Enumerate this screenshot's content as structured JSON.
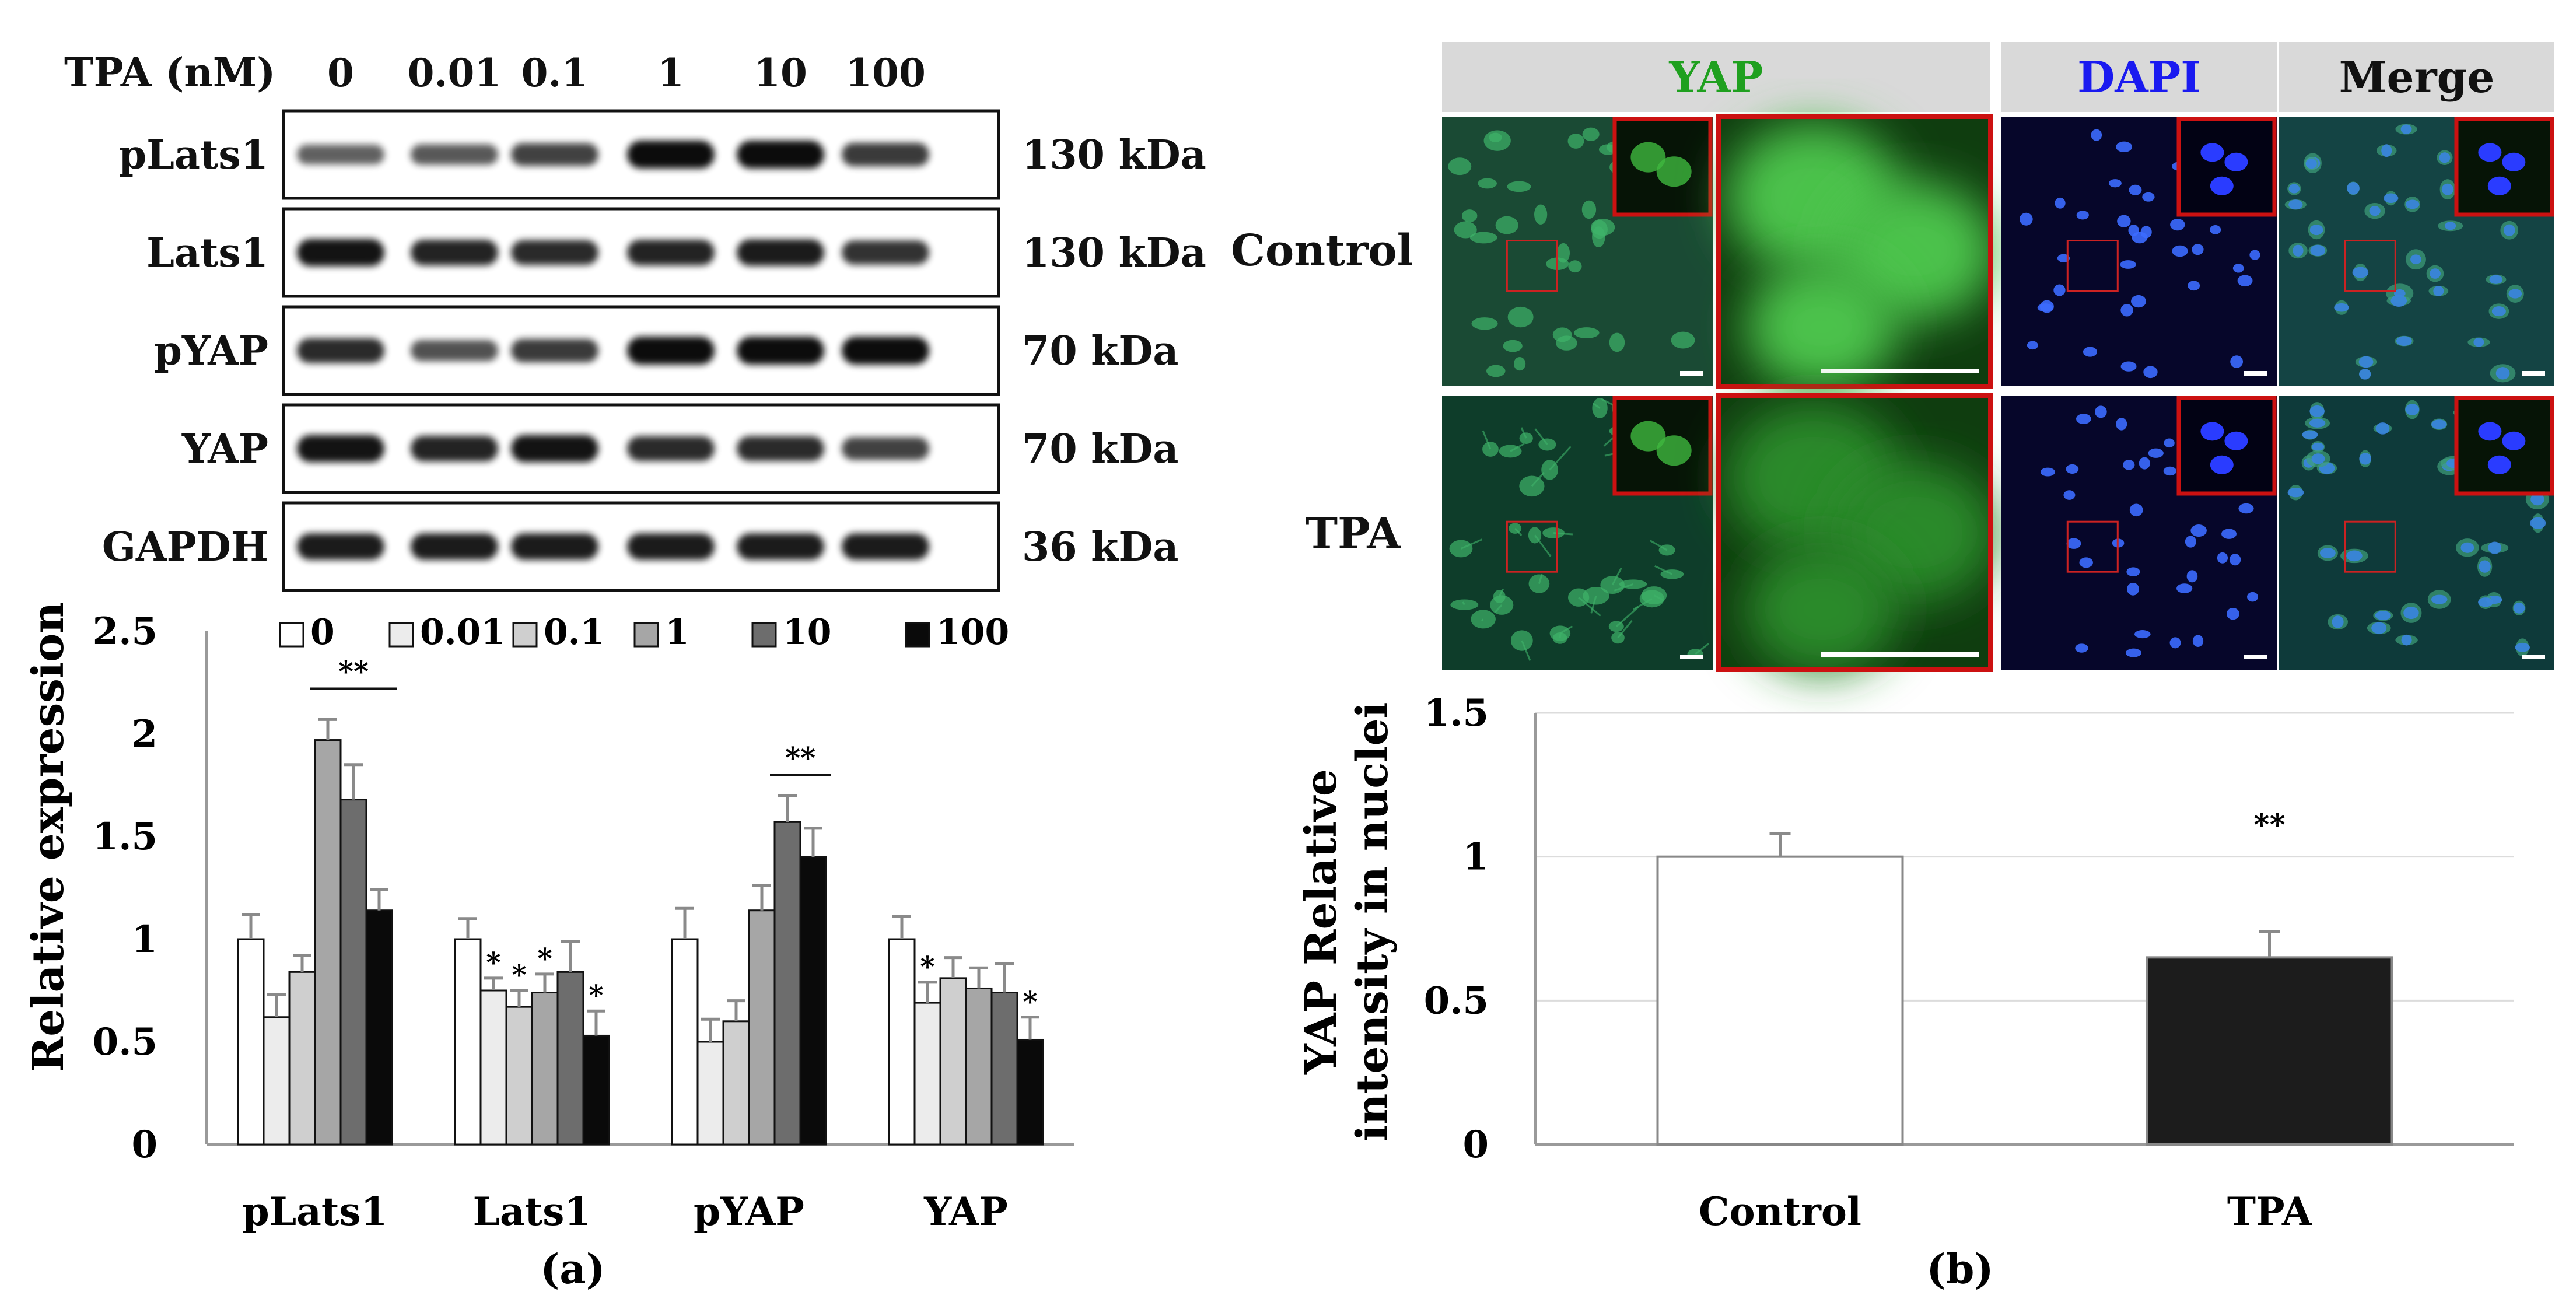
{
  "panel_a": {
    "tpa_header": "TPA (nM)",
    "lanes": [
      "0",
      "0.01",
      "0.1",
      "1",
      "10",
      "100"
    ],
    "blots": [
      {
        "protein": "pLats1",
        "size": "130 kDa",
        "band_intensity": [
          0.45,
          0.5,
          0.65,
          1.0,
          1.0,
          0.7
        ]
      },
      {
        "protein": "Lats1",
        "size": "130 kDa",
        "band_intensity": [
          0.95,
          0.85,
          0.8,
          0.85,
          0.9,
          0.75
        ]
      },
      {
        "protein": "pYAP",
        "size": "70 kDa",
        "band_intensity": [
          0.8,
          0.55,
          0.7,
          1.0,
          1.0,
          1.0
        ]
      },
      {
        "protein": "YAP",
        "size": "70 kDa",
        "band_intensity": [
          0.95,
          0.85,
          0.95,
          0.8,
          0.8,
          0.65
        ]
      },
      {
        "protein": "GAPDH",
        "size": "36 kDa",
        "band_intensity": [
          0.9,
          0.9,
          0.9,
          0.9,
          0.9,
          0.9
        ]
      }
    ],
    "label": "(a)"
  },
  "panel_b": {
    "headers": [
      {
        "text": "YAP",
        "color": "#1fa01f"
      },
      {
        "text": "DAPI",
        "color": "#1a1af0"
      },
      {
        "text": "Merge",
        "color": "#111111"
      }
    ],
    "rows": [
      "Control",
      "TPA"
    ],
    "label": "(b)"
  },
  "chart_data": [
    {
      "type": "bar",
      "categories": [
        "pLats1",
        "Lats1",
        "pYAP",
        "YAP"
      ],
      "series": [
        {
          "name": "0",
          "color": "#ffffff",
          "values": [
            1.0,
            1.0,
            1.0,
            1.0
          ],
          "errors": [
            0.12,
            0.1,
            0.15,
            0.11
          ],
          "sig": [
            "",
            "",
            "",
            ""
          ]
        },
        {
          "name": "0.01",
          "color": "#ececec",
          "values": [
            0.62,
            0.75,
            0.5,
            0.69
          ],
          "errors": [
            0.11,
            0.06,
            0.11,
            0.1
          ],
          "sig": [
            "",
            "*",
            "",
            "*"
          ]
        },
        {
          "name": "0.1",
          "color": "#cfcfcf",
          "values": [
            0.84,
            0.67,
            0.6,
            0.81
          ],
          "errors": [
            0.08,
            0.08,
            0.1,
            0.1
          ],
          "sig": [
            "",
            "*",
            "",
            ""
          ]
        },
        {
          "name": "1",
          "color": "#a6a6a6",
          "values": [
            1.97,
            0.74,
            1.14,
            0.76
          ],
          "errors": [
            0.1,
            0.09,
            0.12,
            0.1
          ],
          "sig": [
            "",
            "*",
            "",
            ""
          ]
        },
        {
          "name": "10",
          "color": "#6d6d6d",
          "values": [
            1.68,
            0.84,
            1.57,
            0.74
          ],
          "errors": [
            0.17,
            0.15,
            0.13,
            0.14
          ],
          "sig": [
            "",
            "",
            "",
            ""
          ]
        },
        {
          "name": "100",
          "color": "#0a0a0a",
          "values": [
            1.14,
            0.53,
            1.4,
            0.51
          ],
          "errors": [
            0.1,
            0.12,
            0.14,
            0.11
          ],
          "sig": [
            "",
            "*",
            "",
            "*"
          ]
        }
      ],
      "brackets": [
        {
          "category": "pLats1",
          "from_series": 3,
          "to_series": 5,
          "y": 2.22,
          "text": "**"
        },
        {
          "category": "pYAP",
          "from_series": 4,
          "to_series": 5,
          "y": 1.8,
          "text": "**"
        }
      ],
      "ylabel": "Relative  expression",
      "ylim": [
        0,
        2.5
      ],
      "yticks": [
        "0",
        "0.5",
        "1",
        "1.5",
        "2",
        "2.5"
      ],
      "grid": false,
      "legend": "top"
    },
    {
      "type": "bar",
      "categories": [
        "Control",
        "TPA"
      ],
      "values": [
        1.0,
        0.65
      ],
      "errors": [
        0.08,
        0.09
      ],
      "colors": [
        "#ffffff",
        "#1c1c1c"
      ],
      "annotations": [
        "",
        "**"
      ],
      "ylabel_lines": [
        "YAP Relative",
        "intensity in nuclei"
      ],
      "ylim": [
        0,
        1.5
      ],
      "yticks": [
        "0",
        "0.5",
        "1",
        "1.5"
      ],
      "grid": true
    }
  ]
}
